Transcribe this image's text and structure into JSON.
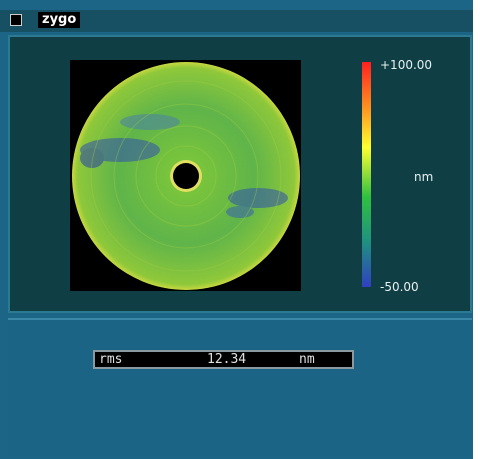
{
  "title_bar": {
    "app_name": "zygo"
  },
  "map_panel": {
    "color_scale": {
      "max_label": "+100.00",
      "unit": "nm",
      "min_label": "-50.00"
    }
  },
  "result_panel": {
    "label": "rms",
    "value": "12.34",
    "unit": "nm"
  }
}
